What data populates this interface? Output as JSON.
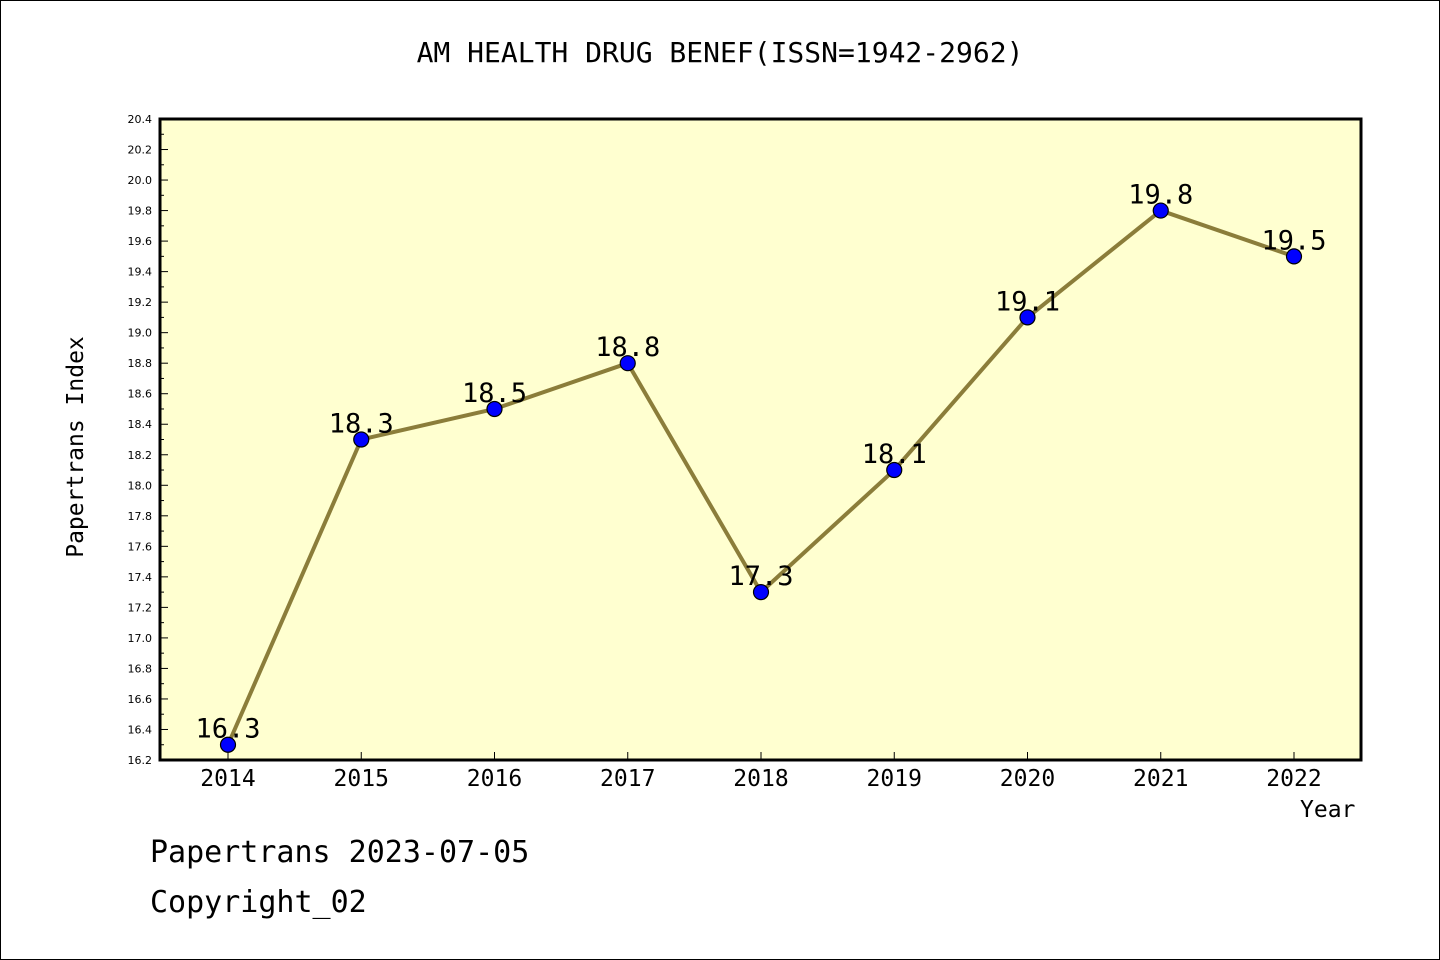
{
  "chart_data": {
    "type": "line",
    "title": "AM HEALTH DRUG BENEF(ISSN=1942-2962)",
    "xlabel": "Year",
    "ylabel": "Papertrans Index",
    "x": [
      "2014",
      "2015",
      "2016",
      "2017",
      "2018",
      "2019",
      "2020",
      "2021",
      "2022"
    ],
    "values": [
      16.3,
      18.3,
      18.5,
      18.8,
      17.3,
      18.1,
      19.1,
      19.8,
      19.5
    ],
    "data_labels": [
      "16.3",
      "18.3",
      "18.5",
      "18.8",
      "17.3",
      "18.1",
      "19.1",
      "19.8",
      "19.5"
    ],
    "ylim": [
      16.2,
      20.4
    ],
    "y_ticks": [
      "16.2",
      "16.4",
      "16.6",
      "16.8",
      "17.0",
      "17.2",
      "17.4",
      "17.6",
      "17.8",
      "18.0",
      "18.2",
      "18.4",
      "18.6",
      "18.8",
      "19.0",
      "19.2",
      "19.4",
      "19.6",
      "19.8",
      "20.0",
      "20.2",
      "20.4"
    ],
    "grid": false,
    "colors": {
      "plot_background": "#ffffd0",
      "line": "#8b7d3a",
      "marker": "#0000ff"
    }
  },
  "footer": {
    "line1": "Papertrans 2023-07-05",
    "line2": "Copyright_02"
  }
}
